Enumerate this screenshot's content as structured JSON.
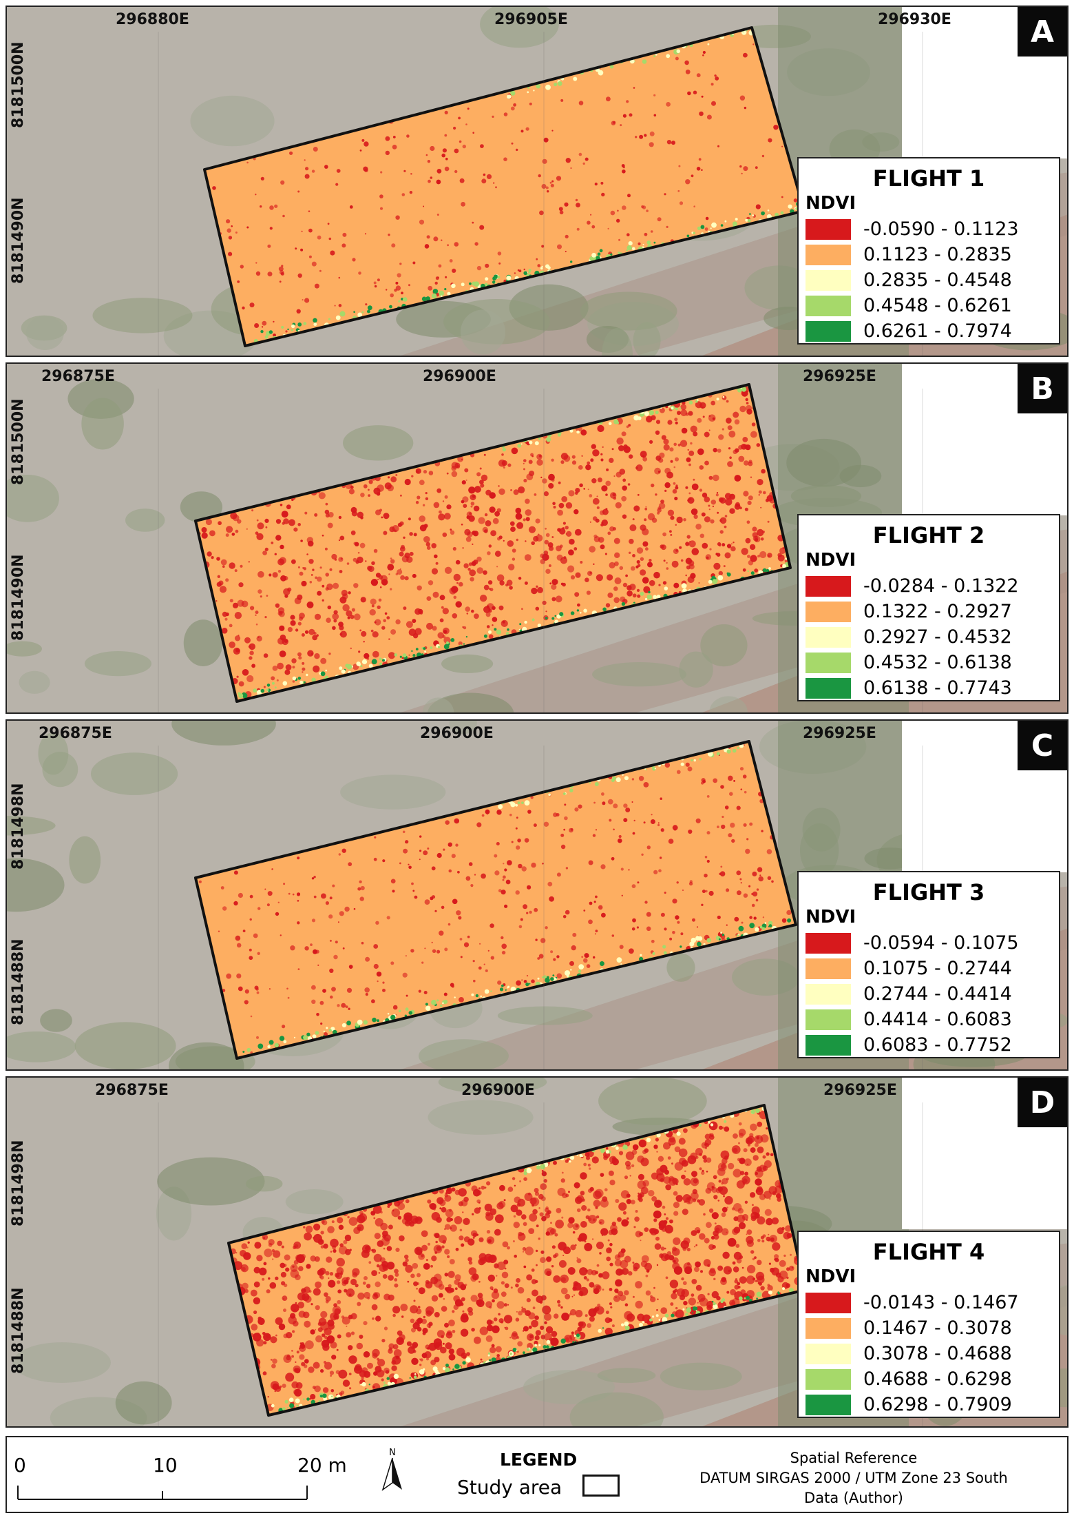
{
  "panels": [
    {
      "letter": "A",
      "legend_title": "FLIGHT 1",
      "legend_subtitle": "NDVI",
      "x_ticks": [
        "296880E",
        "296905E",
        "296930E"
      ],
      "y_ticks": [
        "8181500N",
        "8181490N"
      ],
      "classes": [
        "-0.0590 - 0.1123",
        "0.1123 - 0.2835",
        "0.2835 - 0.4548",
        "0.4548 - 0.6261",
        "0.6261 - 0.7974"
      ],
      "red_coverage": 0.12
    },
    {
      "letter": "B",
      "legend_title": "FLIGHT 2",
      "legend_subtitle": "NDVI",
      "x_ticks": [
        "296875E",
        "296900E",
        "296925E"
      ],
      "y_ticks": [
        "8181500N",
        "8181490N"
      ],
      "classes": [
        "-0.0284 - 0.1322",
        "0.1322 - 0.2927",
        "0.2927 - 0.4532",
        "0.4532 - 0.6138",
        "0.6138 - 0.7743"
      ],
      "red_coverage": 0.38
    },
    {
      "letter": "C",
      "legend_title": "FLIGHT 3",
      "legend_subtitle": "NDVI",
      "x_ticks": [
        "296875E",
        "296900E",
        "296925E"
      ],
      "y_ticks": [
        "8181498N",
        "8181488N"
      ],
      "classes": [
        "-0.0594 - 0.1075",
        "0.1075 - 0.2744",
        "0.2744 - 0.4414",
        "0.4414 - 0.6083",
        "0.6083 - 0.7752"
      ],
      "red_coverage": 0.15
    },
    {
      "letter": "D",
      "legend_title": "FLIGHT 4",
      "legend_subtitle": "NDVI",
      "x_ticks": [
        "296875E",
        "296900E",
        "296925E"
      ],
      "y_ticks": [
        "8181498N",
        "8181488N"
      ],
      "classes": [
        "-0.0143 -  0.1467",
        "0.1467 - 0.3078",
        "0.3078 - 0.4688",
        "0.4688 - 0.6298",
        "0.6298 - 0.7909"
      ],
      "red_coverage": 0.58
    }
  ],
  "class_colors": [
    "#d7191c",
    "#fdae61",
    "#ffffc0",
    "#a6d96a",
    "#1a9641"
  ],
  "footer": {
    "scale_labels": [
      "0",
      "10",
      "20 m"
    ],
    "north_label": "N",
    "legend_heading": "LEGEND",
    "study_area_label": "Study area",
    "spatial_reference": [
      "Spatial Reference",
      "DATUM SIRGAS 2000 / UTM Zone 23 South",
      "Data (Author)"
    ]
  }
}
